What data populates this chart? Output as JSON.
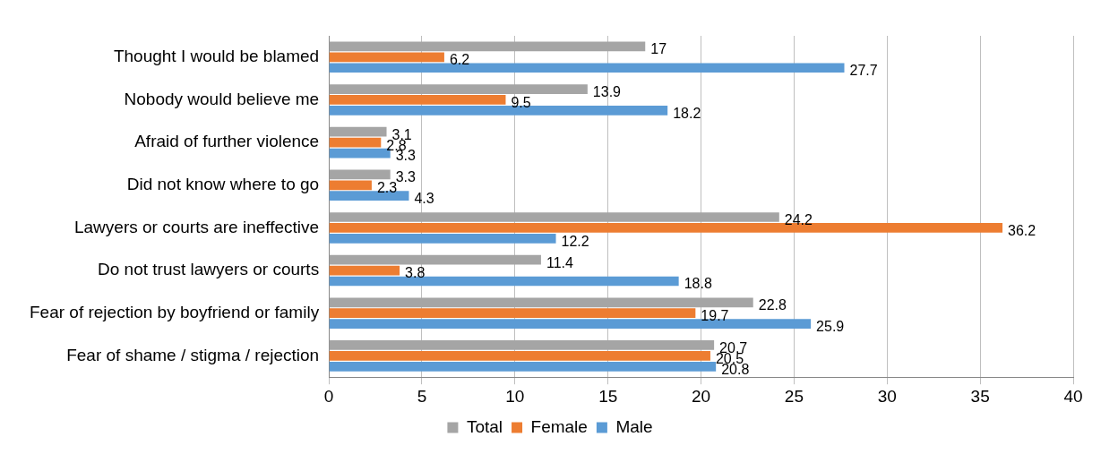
{
  "chart_data": {
    "type": "bar",
    "orientation": "horizontal",
    "categories": [
      "Thought I would be blamed",
      "Nobody would believe me",
      "Afraid of further violence",
      "Did not know where to go",
      "Lawyers or courts are ineffective",
      "Do not trust lawyers or courts",
      "Fear of rejection by boyfriend or family",
      "Fear of shame / stigma / rejection"
    ],
    "series": [
      {
        "name": "Total",
        "color": "#a5a5a5",
        "values": [
          17,
          13.9,
          3.1,
          3.3,
          24.2,
          11.4,
          22.8,
          20.7
        ]
      },
      {
        "name": "Female",
        "color": "#ed7d31",
        "values": [
          6.2,
          9.5,
          2.8,
          2.3,
          36.2,
          3.8,
          19.7,
          20.5
        ]
      },
      {
        "name": "Male",
        "color": "#5b9bd5",
        "values": [
          27.7,
          18.2,
          3.3,
          4.3,
          12.2,
          18.8,
          25.9,
          20.8
        ]
      }
    ],
    "xlim": [
      0,
      40
    ],
    "xticks": [
      0,
      5,
      10,
      15,
      20,
      25,
      30,
      35,
      40
    ],
    "grid": "x",
    "legend": "bottom",
    "data_labels": true
  }
}
